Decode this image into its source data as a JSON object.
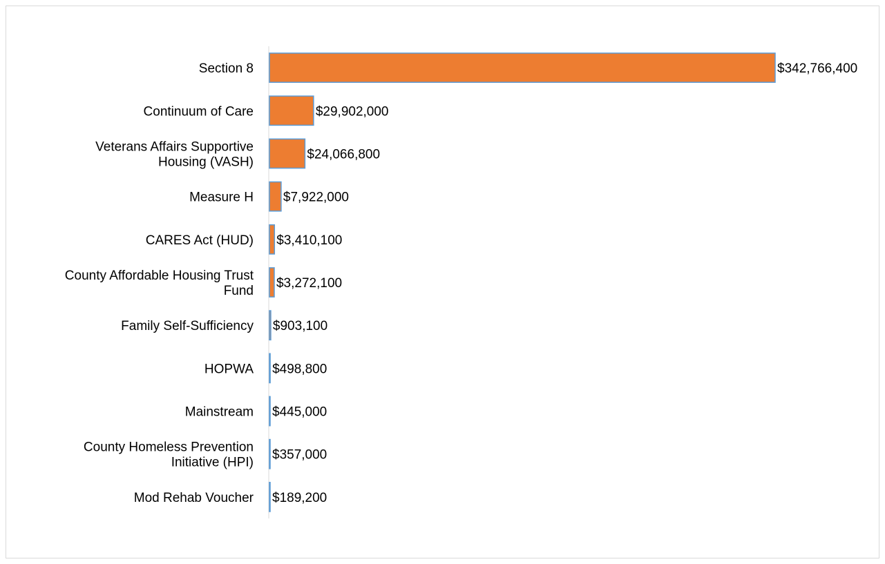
{
  "chart_data": {
    "type": "bar",
    "orientation": "horizontal",
    "title": "",
    "xlabel": "",
    "ylabel": "",
    "categories": [
      "Section 8",
      "Continuum of Care",
      "Veterans Affairs Supportive Housing (VASH)",
      "Measure H",
      "CARES Act (HUD)",
      "County Affordable Housing Trust Fund",
      "Family Self-Sufficiency",
      "HOPWA",
      "Mainstream",
      "County Homeless Prevention Initiative (HPI)",
      "Mod Rehab Voucher"
    ],
    "category_label_lines": [
      [
        "Section 8"
      ],
      [
        "Continuum of Care"
      ],
      [
        "Veterans Affairs Supportive",
        "Housing (VASH)"
      ],
      [
        "Measure H"
      ],
      [
        "CARES Act (HUD)"
      ],
      [
        "County Affordable Housing Trust",
        "Fund"
      ],
      [
        "Family Self-Sufficiency"
      ],
      [
        "HOPWA"
      ],
      [
        "Mainstream"
      ],
      [
        "County Homeless Prevention",
        "Initiative (HPI)"
      ],
      [
        "Mod Rehab Voucher"
      ]
    ],
    "values": [
      342766400,
      29902000,
      24066800,
      7922000,
      3410100,
      3272100,
      903100,
      498800,
      445000,
      357000,
      189200
    ],
    "data_labels": [
      "$342,766,400",
      "$29,902,000",
      "$24,066,800",
      "$7,922,000",
      "$3,410,100",
      "$3,272,100",
      "$903,100",
      "$498,800",
      "$445,000",
      "$357,000",
      "$189,200"
    ],
    "xlim": [
      0,
      342766400
    ],
    "grid": false,
    "legend": "none",
    "colors": {
      "bar_fill": "#ED7D31",
      "bar_stroke": "#5B9BD5",
      "axis": "#d9d9d9"
    }
  }
}
